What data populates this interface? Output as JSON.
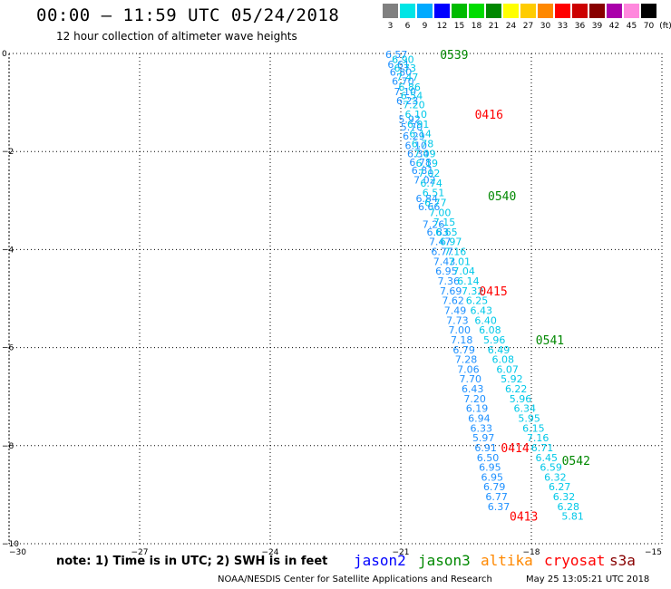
{
  "header": {
    "title": "00:00 – 11:59 UTC 05/24/2018",
    "subtitle": "12 hour collection of altimeter wave heights"
  },
  "colorbar": {
    "unit": "(ft)",
    "labels": [
      "3",
      "6",
      "9",
      "12",
      "15",
      "18",
      "21",
      "24",
      "27",
      "30",
      "33",
      "36",
      "39",
      "42",
      "45",
      "70"
    ],
    "colors": [
      "#808080",
      "#00e5e5",
      "#00aaff",
      "#0000ff",
      "#00bb00",
      "#00dd00",
      "#008800",
      "#ffff00",
      "#ffcc00",
      "#ff8800",
      "#ff0000",
      "#cc0000",
      "#880000",
      "#aa00aa",
      "#ff88dd",
      "#000000"
    ]
  },
  "footer": {
    "note": "note: 1) Time is in UTC; 2) SWH is in feet",
    "credit": "NOAA/NESDIS Center for Satellite Applications and Research",
    "timestamp": "May 25 13:05:21 UTC 2018"
  },
  "satellites": [
    {
      "name": "jason2",
      "color": "#0000ff"
    },
    {
      "name": "jason3",
      "color": "#008800"
    },
    {
      "name": "altika",
      "color": "#ff8800"
    },
    {
      "name": "cryosat",
      "color": "#ff0000"
    },
    {
      "name": "s3a",
      "color": "#880000"
    }
  ],
  "chart_data": {
    "type": "scatter",
    "title": "00:00 – 11:59 UTC 05/24/2018",
    "xlim": [
      -30,
      -15
    ],
    "ylim": [
      -10,
      0
    ],
    "xticks": [
      -30,
      -27,
      -24,
      -21,
      -18,
      -15
    ],
    "yticks": [
      0,
      -2,
      -4,
      -6,
      -8,
      -10
    ],
    "grid": true,
    "series": [
      {
        "name": "jason3",
        "color": "#1e90ff",
        "points": [
          [
            -21.1,
            -0.02,
            "6.57"
          ],
          [
            -21.05,
            -0.22,
            "6.61"
          ],
          [
            -21.0,
            -0.38,
            "6.80"
          ],
          [
            -20.95,
            -0.56,
            "6.70"
          ],
          [
            -20.9,
            -0.78,
            "7.10"
          ],
          [
            -20.85,
            -0.96,
            "6.23"
          ],
          [
            -20.8,
            -1.34,
            "5.92"
          ],
          [
            -20.75,
            -1.5,
            "5.70"
          ],
          [
            -20.7,
            -1.68,
            "6.29"
          ],
          [
            -20.65,
            -1.88,
            "6.10"
          ],
          [
            -20.6,
            -2.04,
            "6.34"
          ],
          [
            -20.55,
            -2.22,
            "6.78"
          ],
          [
            -20.5,
            -2.38,
            "6.81"
          ],
          [
            -20.45,
            -2.58,
            "7.02"
          ],
          [
            -20.4,
            -2.96,
            "6.84"
          ],
          [
            -20.35,
            -3.12,
            "6.66"
          ],
          [
            -20.25,
            -3.48,
            "7.26"
          ],
          [
            -20.15,
            -3.64,
            "6.83"
          ],
          [
            -20.1,
            -3.84,
            "7.47"
          ],
          [
            -20.05,
            -4.04,
            "6.77"
          ],
          [
            -20.0,
            -4.24,
            "7.43"
          ],
          [
            -19.95,
            -4.44,
            "6.95"
          ],
          [
            -19.9,
            -4.64,
            "7.36"
          ],
          [
            -19.85,
            -4.84,
            "7.69"
          ],
          [
            -19.8,
            -5.04,
            "7.62"
          ],
          [
            -19.75,
            -5.24,
            "7.49"
          ],
          [
            -19.7,
            -5.44,
            "7.73"
          ],
          [
            -19.65,
            -5.64,
            "7.00"
          ],
          [
            -19.6,
            -5.84,
            "7.18"
          ],
          [
            -19.55,
            -6.04,
            "6.79"
          ],
          [
            -19.5,
            -6.24,
            "7.28"
          ],
          [
            -19.45,
            -6.44,
            "7.06"
          ],
          [
            -19.4,
            -6.64,
            "7.70"
          ],
          [
            -19.35,
            -6.84,
            "6.43"
          ],
          [
            -19.3,
            -7.04,
            "7.20"
          ],
          [
            -19.25,
            -7.24,
            "6.19"
          ],
          [
            -19.2,
            -7.44,
            "6.94"
          ],
          [
            -19.15,
            -7.64,
            "6.33"
          ],
          [
            -19.1,
            -7.84,
            "5.97"
          ],
          [
            -19.05,
            -8.04,
            "6.91"
          ],
          [
            -19.0,
            -8.24,
            "6.50"
          ],
          [
            -18.95,
            -8.44,
            "6.95"
          ],
          [
            -18.9,
            -8.64,
            "6.95"
          ],
          [
            -18.85,
            -8.84,
            "6.79"
          ],
          [
            -18.8,
            -9.04,
            "6.77"
          ],
          [
            -18.75,
            -9.24,
            "6.37"
          ]
        ]
      },
      {
        "name": "jason2",
        "color": "#00c8e8",
        "points": [
          [
            -20.95,
            -0.12,
            "6.90"
          ],
          [
            -20.9,
            -0.3,
            "6.73"
          ],
          [
            -20.85,
            -0.48,
            "7.47"
          ],
          [
            -20.8,
            -0.68,
            "6.86"
          ],
          [
            -20.75,
            -0.86,
            "6.54"
          ],
          [
            -20.7,
            -1.04,
            "7.20"
          ],
          [
            -20.65,
            -1.24,
            "6.10"
          ],
          [
            -20.6,
            -1.44,
            "6.91"
          ],
          [
            -20.55,
            -1.64,
            "6.14"
          ],
          [
            -20.5,
            -1.84,
            "6.78"
          ],
          [
            -20.45,
            -2.04,
            "7.09"
          ],
          [
            -20.4,
            -2.24,
            "6.19"
          ],
          [
            -20.35,
            -2.44,
            "7.02"
          ],
          [
            -20.3,
            -2.64,
            "6.74"
          ],
          [
            -20.25,
            -2.84,
            "6.51"
          ],
          [
            -20.2,
            -3.04,
            "6.77"
          ],
          [
            -20.1,
            -3.24,
            "7.00"
          ],
          [
            -20.0,
            -3.44,
            "7.15"
          ],
          [
            -19.95,
            -3.64,
            "6.65"
          ],
          [
            -19.85,
            -3.84,
            "6.97"
          ],
          [
            -19.75,
            -4.04,
            "7.16"
          ],
          [
            -19.65,
            -4.24,
            "7.01"
          ],
          [
            -19.55,
            -4.44,
            "7.04"
          ],
          [
            -19.45,
            -4.64,
            "6.14"
          ],
          [
            -19.35,
            -4.84,
            "7.32"
          ],
          [
            -19.25,
            -5.04,
            "6.25"
          ],
          [
            -19.15,
            -5.24,
            "6.43"
          ],
          [
            -19.05,
            -5.44,
            "6.40"
          ],
          [
            -18.95,
            -5.64,
            "6.08"
          ],
          [
            -18.85,
            -5.84,
            "5.96"
          ],
          [
            -18.75,
            -6.04,
            "6.49"
          ],
          [
            -18.65,
            -6.24,
            "6.08"
          ],
          [
            -18.55,
            -6.44,
            "6.07"
          ],
          [
            -18.45,
            -6.64,
            "5.92"
          ],
          [
            -18.35,
            -6.84,
            "6.22"
          ],
          [
            -18.25,
            -7.04,
            "5.96"
          ],
          [
            -18.15,
            -7.24,
            "6.34"
          ],
          [
            -18.05,
            -7.44,
            "5.95"
          ],
          [
            -17.95,
            -7.64,
            "6.15"
          ],
          [
            -17.85,
            -7.84,
            "7.16"
          ],
          [
            -17.75,
            -8.04,
            "6.71"
          ],
          [
            -17.65,
            -8.24,
            "6.45"
          ],
          [
            -17.55,
            -8.44,
            "6.59"
          ],
          [
            -17.45,
            -8.64,
            "6.32"
          ],
          [
            -17.35,
            -8.84,
            "6.27"
          ],
          [
            -17.25,
            -9.04,
            "6.32"
          ],
          [
            -17.15,
            -9.24,
            "6.28"
          ],
          [
            -17.05,
            -9.44,
            "5.81"
          ]
        ]
      }
    ],
    "time_labels": [
      {
        "text": "0539",
        "x": -20.1,
        "y": -0.02,
        "color": "#008800"
      },
      {
        "text": "0416",
        "x": -19.3,
        "y": -1.24,
        "color": "#ff0000"
      },
      {
        "text": "0540",
        "x": -19.0,
        "y": -2.9,
        "color": "#008800"
      },
      {
        "text": "0415",
        "x": -19.2,
        "y": -4.84,
        "color": "#ff0000"
      },
      {
        "text": "0541",
        "x": -17.9,
        "y": -5.84,
        "color": "#008800"
      },
      {
        "text": "0414",
        "x": -18.7,
        "y": -8.04,
        "color": "#ff0000"
      },
      {
        "text": "0542",
        "x": -17.3,
        "y": -8.3,
        "color": "#008800"
      },
      {
        "text": "0413",
        "x": -18.5,
        "y": -9.44,
        "color": "#ff0000"
      }
    ]
  }
}
